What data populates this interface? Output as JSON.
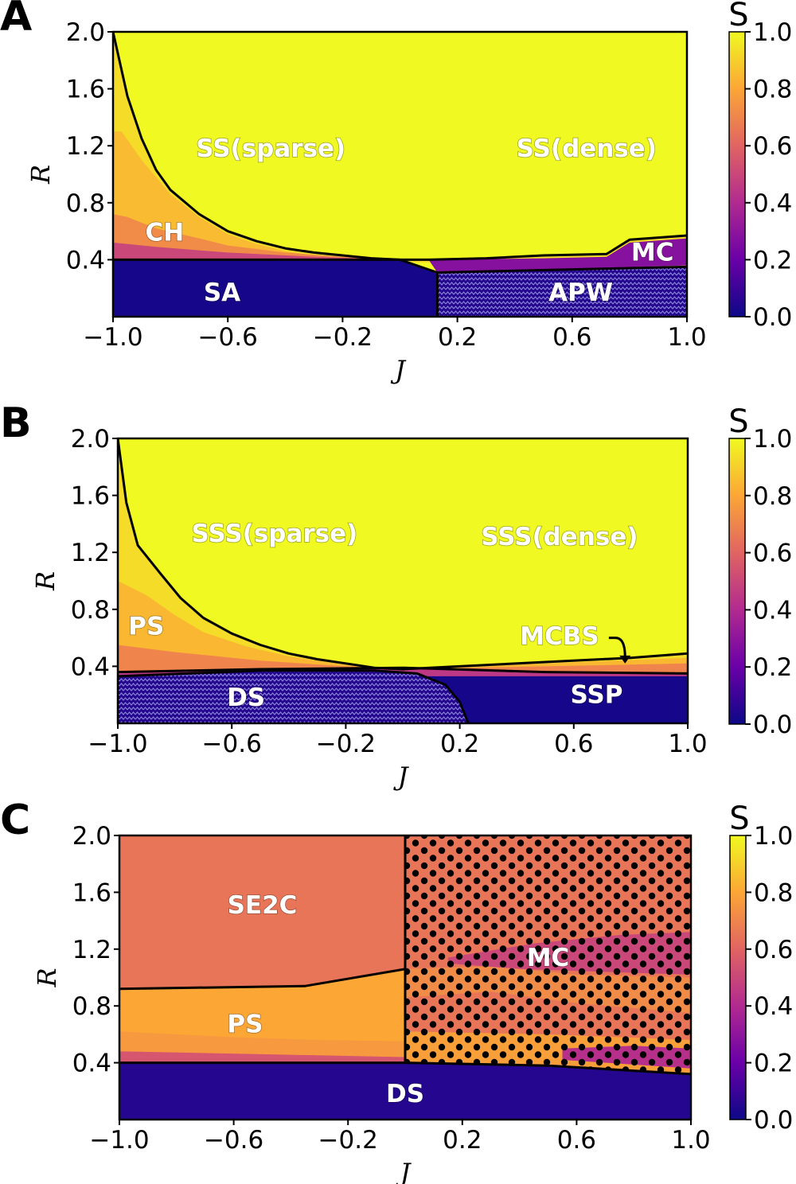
{
  "colormap": {
    "name": "plasma",
    "stops": [
      "#0d0887",
      "#6a00a8",
      "#b12a90",
      "#e16462",
      "#fca636",
      "#f0f921"
    ]
  },
  "chart_data": [
    {
      "type": "heatmap",
      "panel": "A",
      "xlabel": "J",
      "ylabel": "R",
      "xlim": [
        -1.0,
        1.0
      ],
      "ylim": [
        0.0,
        2.0
      ],
      "xticks": [
        -1.0,
        -0.6,
        -0.2,
        0.2,
        0.6,
        1.0
      ],
      "yticks": [
        0.4,
        0.8,
        1.2,
        1.6,
        2.0
      ],
      "xtick_labels": [
        "−1.0",
        "−0.6",
        "−0.2",
        "0.2",
        "0.6",
        "1.0"
      ],
      "ytick_labels": [
        "0.4",
        "0.8",
        "1.2",
        "1.6",
        "2.0"
      ],
      "colorbar": {
        "label": "S",
        "range": [
          0.0,
          1.0
        ],
        "ticks": [
          0.0,
          0.2,
          0.4,
          0.6,
          0.8,
          1.0
        ],
        "tick_labels": [
          "0.0",
          "0.2",
          "0.4",
          "0.6",
          "0.8",
          "1.0"
        ]
      },
      "regions": [
        {
          "label": "SS(sparse)",
          "J": -0.45,
          "R": 1.17,
          "S": 1.0
        },
        {
          "label": "SS(dense)",
          "J": 0.65,
          "R": 1.17,
          "S": 1.0
        },
        {
          "label": "CH",
          "J": -0.82,
          "R": 0.58,
          "S": 0.8
        },
        {
          "label": "MC",
          "J": 0.88,
          "R": 0.44,
          "S": 0.3
        },
        {
          "label": "SA",
          "J": -0.62,
          "R": 0.16,
          "S": 0.02
        },
        {
          "label": "APW",
          "J": 0.63,
          "R": 0.16,
          "S": 0.05
        }
      ],
      "boundaries": [
        {
          "name": "ss-ch",
          "points": [
            [
              -1.0,
              2.0
            ],
            [
              -0.95,
              1.55
            ],
            [
              -0.9,
              1.25
            ],
            [
              -0.85,
              1.03
            ],
            [
              -0.8,
              0.89
            ],
            [
              -0.7,
              0.72
            ],
            [
              -0.6,
              0.6
            ],
            [
              -0.5,
              0.53
            ],
            [
              -0.4,
              0.48
            ],
            [
              -0.3,
              0.45
            ],
            [
              -0.2,
              0.43
            ],
            [
              -0.1,
              0.41
            ],
            [
              0.0,
              0.4
            ],
            [
              0.1,
              0.4
            ],
            [
              0.3,
              0.41
            ],
            [
              0.5,
              0.43
            ],
            [
              0.72,
              0.44
            ],
            [
              0.8,
              0.54
            ],
            [
              1.0,
              0.57
            ]
          ]
        },
        {
          "name": "sa-top",
          "points": [
            [
              -1.0,
              0.4
            ],
            [
              0.0,
              0.4
            ],
            [
              0.13,
              0.31
            ]
          ]
        },
        {
          "name": "apw-top",
          "points": [
            [
              0.13,
              0.31
            ],
            [
              1.0,
              0.35
            ]
          ]
        },
        {
          "name": "sa-apw",
          "points": [
            [
              0.13,
              0.31
            ],
            [
              0.13,
              0.0
            ]
          ]
        }
      ]
    },
    {
      "type": "heatmap",
      "panel": "B",
      "xlabel": "J",
      "ylabel": "R",
      "xlim": [
        -1.0,
        1.0
      ],
      "ylim": [
        0.0,
        2.0
      ],
      "xticks": [
        -1.0,
        -0.6,
        -0.2,
        0.2,
        0.6,
        1.0
      ],
      "yticks": [
        0.4,
        0.8,
        1.2,
        1.6,
        2.0
      ],
      "xtick_labels": [
        "−1.0",
        "−0.6",
        "−0.2",
        "0.2",
        "0.6",
        "1.0"
      ],
      "ytick_labels": [
        "0.4",
        "0.8",
        "1.2",
        "1.6",
        "2.0"
      ],
      "colorbar": {
        "label": "S",
        "range": [
          0.0,
          1.0
        ],
        "ticks": [
          0.0,
          0.2,
          0.4,
          0.6,
          0.8,
          1.0
        ],
        "tick_labels": [
          "0.0",
          "0.2",
          "0.4",
          "0.6",
          "0.8",
          "1.0"
        ]
      },
      "regions": [
        {
          "label": "SSS(sparse)",
          "J": -0.45,
          "R": 1.32,
          "S": 1.0
        },
        {
          "label": "SSS(dense)",
          "J": 0.55,
          "R": 1.3,
          "S": 1.0
        },
        {
          "label": "PS",
          "J": -0.9,
          "R": 0.67,
          "S": 0.85
        },
        {
          "label": "MCBS",
          "J": 0.55,
          "R": 0.6,
          "S": 0.75,
          "arrow_to": [
            0.78,
            0.42
          ]
        },
        {
          "label": "DS",
          "J": -0.55,
          "R": 0.17,
          "S": 0.05
        },
        {
          "label": "SSP",
          "J": 0.68,
          "R": 0.19,
          "S": 0.02
        }
      ],
      "boundaries": [
        {
          "name": "sss-ps",
          "points": [
            [
              -1.0,
              2.0
            ],
            [
              -0.97,
              1.55
            ],
            [
              -0.93,
              1.25
            ],
            [
              -0.85,
              1.05
            ],
            [
              -0.78,
              0.88
            ],
            [
              -0.7,
              0.74
            ],
            [
              -0.6,
              0.63
            ],
            [
              -0.5,
              0.55
            ],
            [
              -0.4,
              0.49
            ],
            [
              -0.3,
              0.45
            ],
            [
              -0.2,
              0.42
            ],
            [
              -0.1,
              0.39
            ],
            [
              0.0,
              0.38
            ],
            [
              0.2,
              0.4
            ],
            [
              0.5,
              0.43
            ],
            [
              0.8,
              0.46
            ],
            [
              1.0,
              0.49
            ]
          ]
        },
        {
          "name": "ps-low",
          "points": [
            [
              -1.0,
              0.36
            ],
            [
              -0.5,
              0.38
            ],
            [
              0.0,
              0.39
            ],
            [
              0.5,
              0.36
            ],
            [
              1.0,
              0.35
            ]
          ]
        },
        {
          "name": "ds-top",
          "points": [
            [
              -1.0,
              0.33
            ],
            [
              -0.5,
              0.37
            ],
            [
              -0.1,
              0.37
            ],
            [
              0.05,
              0.35
            ],
            [
              0.15,
              0.27
            ],
            [
              0.2,
              0.15
            ],
            [
              0.23,
              0.0
            ]
          ]
        }
      ]
    },
    {
      "type": "heatmap",
      "panel": "C",
      "xlabel": "J",
      "ylabel": "R",
      "xlim": [
        -1.0,
        1.0
      ],
      "ylim": [
        0.0,
        2.0
      ],
      "xticks": [
        -1.0,
        -0.6,
        -0.2,
        0.2,
        0.6,
        1.0
      ],
      "yticks": [
        0.4,
        0.8,
        1.2,
        1.6,
        2.0
      ],
      "xtick_labels": [
        "−1.0",
        "−0.6",
        "−0.2",
        "0.2",
        "0.6",
        "1.0"
      ],
      "ytick_labels": [
        "0.4",
        "0.8",
        "1.2",
        "1.6",
        "2.0"
      ],
      "colorbar": {
        "label": "S",
        "range": [
          0.0,
          1.0
        ],
        "ticks": [
          0.0,
          0.2,
          0.4,
          0.6,
          0.8,
          1.0
        ],
        "tick_labels": [
          "0.0",
          "0.2",
          "0.4",
          "0.6",
          "0.8",
          "1.0"
        ]
      },
      "regions": [
        {
          "label": "SE2C",
          "J": -0.5,
          "R": 1.5,
          "S": 0.65
        },
        {
          "label": "MC",
          "J": 0.5,
          "R": 1.13,
          "S": 0.65
        },
        {
          "label": "PS",
          "J": -0.56,
          "R": 0.66,
          "S": 0.8
        },
        {
          "label": "DS",
          "J": 0.0,
          "R": 0.17,
          "S": 0.05
        }
      ],
      "boundaries": [
        {
          "name": "se2c-ps",
          "points": [
            [
              -1.0,
              0.92
            ],
            [
              -0.35,
              0.94
            ],
            [
              0.0,
              1.06
            ]
          ]
        },
        {
          "name": "mc-left",
          "points": [
            [
              0.0,
              2.0
            ],
            [
              0.0,
              0.4
            ]
          ]
        },
        {
          "name": "ds-top",
          "points": [
            [
              -1.0,
              0.4
            ],
            [
              0.0,
              0.4
            ],
            [
              0.5,
              0.38
            ],
            [
              1.0,
              0.32
            ]
          ]
        }
      ]
    }
  ]
}
